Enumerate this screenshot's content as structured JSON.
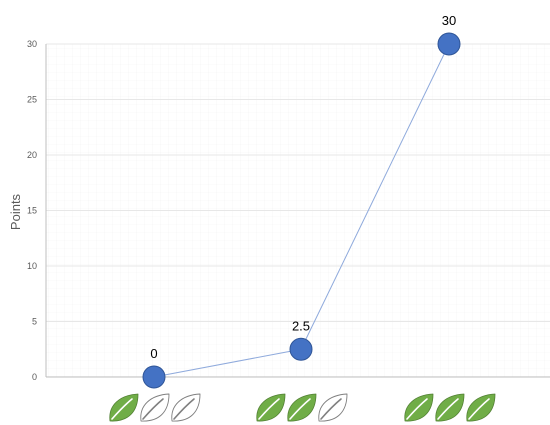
{
  "chart_data": {
    "type": "line",
    "categories": [
      "1 of 3 leaves",
      "2 of 3 leaves",
      "3 of 3 leaves"
    ],
    "category_leaf_counts": [
      1,
      2,
      3
    ],
    "leaf_total": 3,
    "values": [
      0,
      2.5,
      30
    ],
    "data_labels": [
      "0",
      "2.5",
      "30"
    ],
    "title": "",
    "xlabel": "",
    "ylabel": "Points",
    "ylim": [
      0,
      30
    ],
    "yticks": [
      0,
      5,
      10,
      15,
      20,
      25,
      30
    ],
    "ytick_labels": [
      "0",
      "5",
      "10",
      "15",
      "20",
      "25",
      "30"
    ],
    "grid": true,
    "legend": "none",
    "colors": {
      "marker_fill": "#4472C4",
      "marker_stroke": "#2F5597",
      "line": "#8FAADC",
      "leaf_filled": "#70AD47",
      "leaf_filled_stroke": "#538135",
      "leaf_empty_stroke": "#7F7F7F",
      "gridline": "#E7E7E7",
      "axis": "#BFBFBF"
    },
    "icon": "leaf-icon"
  }
}
